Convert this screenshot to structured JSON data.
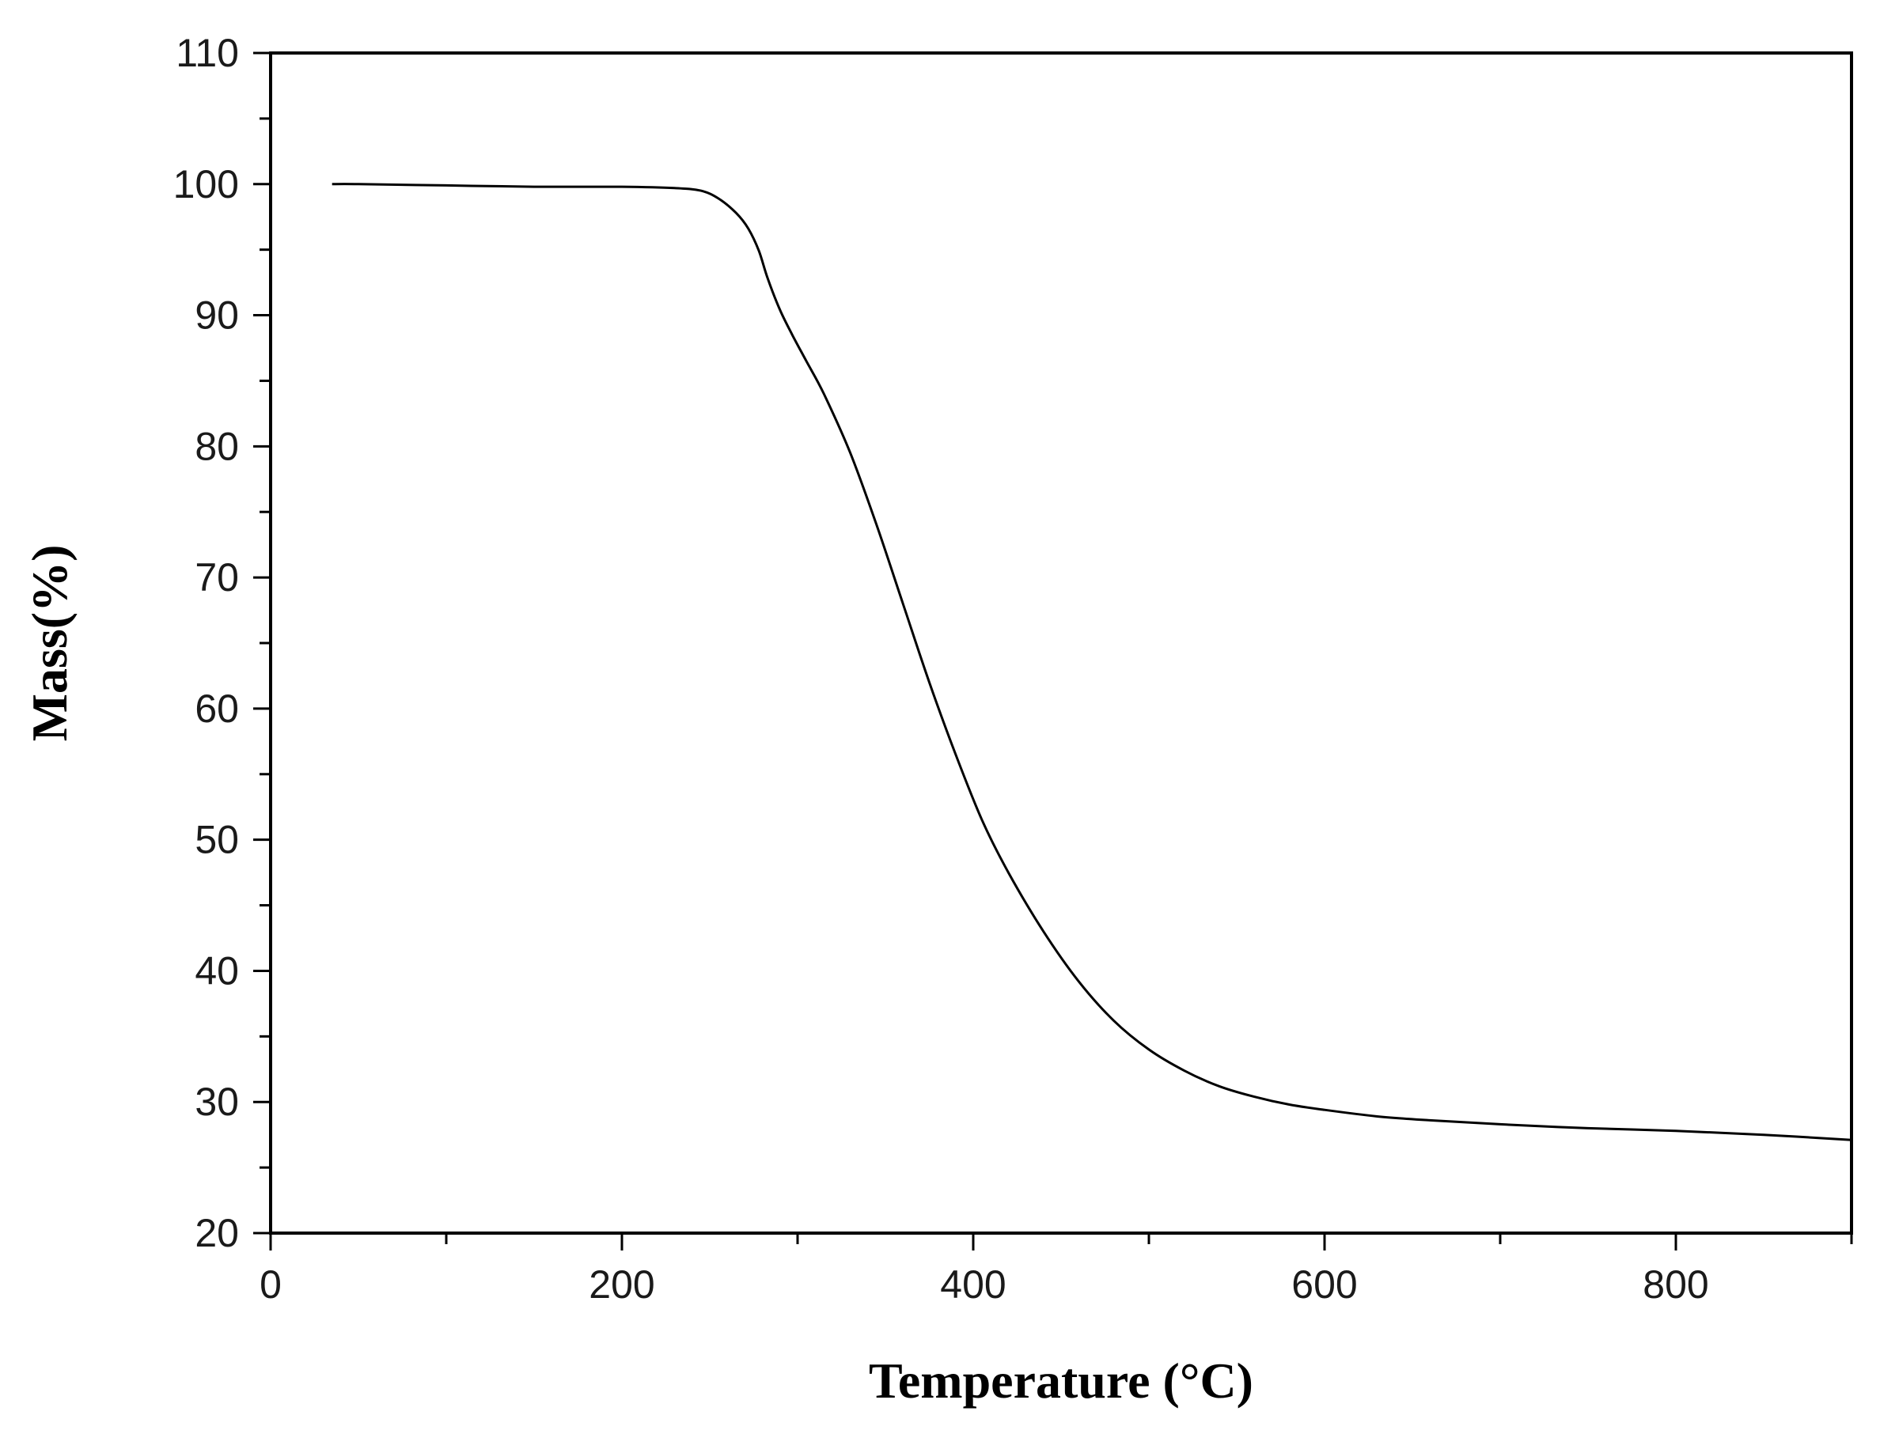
{
  "chart_data": {
    "type": "line",
    "title": "",
    "xlabel": "Temperature (°C)",
    "ylabel": "Mass(%)",
    "xlim": [
      0,
      900
    ],
    "ylim": [
      20,
      110
    ],
    "x_ticks": [
      0,
      200,
      400,
      600,
      800
    ],
    "y_ticks": [
      20,
      30,
      40,
      50,
      60,
      70,
      80,
      90,
      100,
      110
    ],
    "x_minor_step": 100,
    "y_minor_step": 5,
    "grid": false,
    "legend": "none",
    "line_color": "#000000",
    "series": [
      {
        "x": [
          35,
          50,
          100,
          150,
          200,
          230,
          245,
          255,
          265,
          272,
          278,
          283,
          290,
          297,
          305,
          315,
          330,
          345,
          360,
          375,
          390,
          405,
          420,
          440,
          460,
          480,
          500,
          520,
          540,
          560,
          580,
          600,
          630,
          660,
          700,
          750,
          800,
          850,
          900
        ],
        "y": [
          100,
          100,
          99.9,
          99.8,
          99.8,
          99.7,
          99.5,
          98.9,
          97.8,
          96.6,
          94.9,
          92.8,
          90.4,
          88.5,
          86.5,
          84,
          79.5,
          74,
          68,
          62,
          56.5,
          51.5,
          47.5,
          43,
          39.2,
          36.2,
          34,
          32.4,
          31.2,
          30.4,
          29.8,
          29.4,
          28.9,
          28.6,
          28.3,
          28,
          27.8,
          27.5,
          27.1
        ]
      }
    ]
  }
}
